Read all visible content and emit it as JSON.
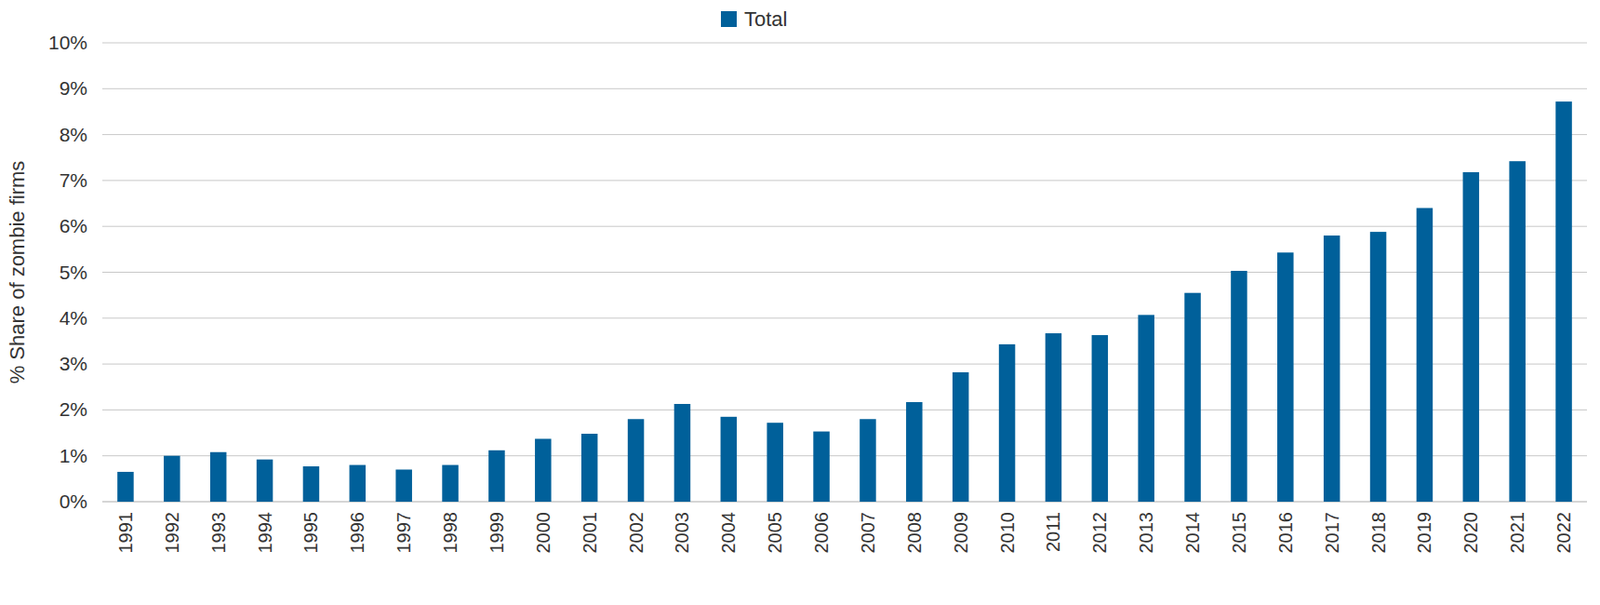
{
  "chart_data": {
    "type": "bar",
    "y_label": "% Share of zombie firms",
    "categories": [
      "1991",
      "1992",
      "1993",
      "1994",
      "1995",
      "1996",
      "1997",
      "1998",
      "1999",
      "2000",
      "2001",
      "2002",
      "2003",
      "2004",
      "2005",
      "2006",
      "2007",
      "2008",
      "2009",
      "2010",
      "2011",
      "2012",
      "2013",
      "2014",
      "2015",
      "2016",
      "2017",
      "2018",
      "2019",
      "2020",
      "2021",
      "2022"
    ],
    "series": [
      {
        "name": "Total",
        "color": "#00609a",
        "values": [
          0.65,
          1.0,
          1.08,
          0.92,
          0.77,
          0.8,
          0.7,
          0.8,
          1.12,
          1.37,
          1.48,
          1.8,
          2.13,
          1.85,
          1.72,
          1.53,
          1.8,
          2.17,
          2.82,
          3.43,
          3.67,
          3.63,
          4.07,
          4.55,
          5.03,
          5.43,
          5.8,
          5.88,
          6.4,
          7.18,
          7.42,
          8.72
        ]
      }
    ],
    "ylim": [
      0,
      10
    ],
    "yticks": [
      {
        "value": 0,
        "label": "0%"
      },
      {
        "value": 1,
        "label": "1%"
      },
      {
        "value": 2,
        "label": "2%"
      },
      {
        "value": 3,
        "label": "3%"
      },
      {
        "value": 4,
        "label": "4%"
      },
      {
        "value": 5,
        "label": "5%"
      },
      {
        "value": 6,
        "label": "6%"
      },
      {
        "value": 7,
        "label": "7%"
      },
      {
        "value": 8,
        "label": "8%"
      },
      {
        "value": 9,
        "label": "9%"
      },
      {
        "value": 10,
        "label": "10%"
      }
    ],
    "grid": true,
    "legend": "top"
  }
}
